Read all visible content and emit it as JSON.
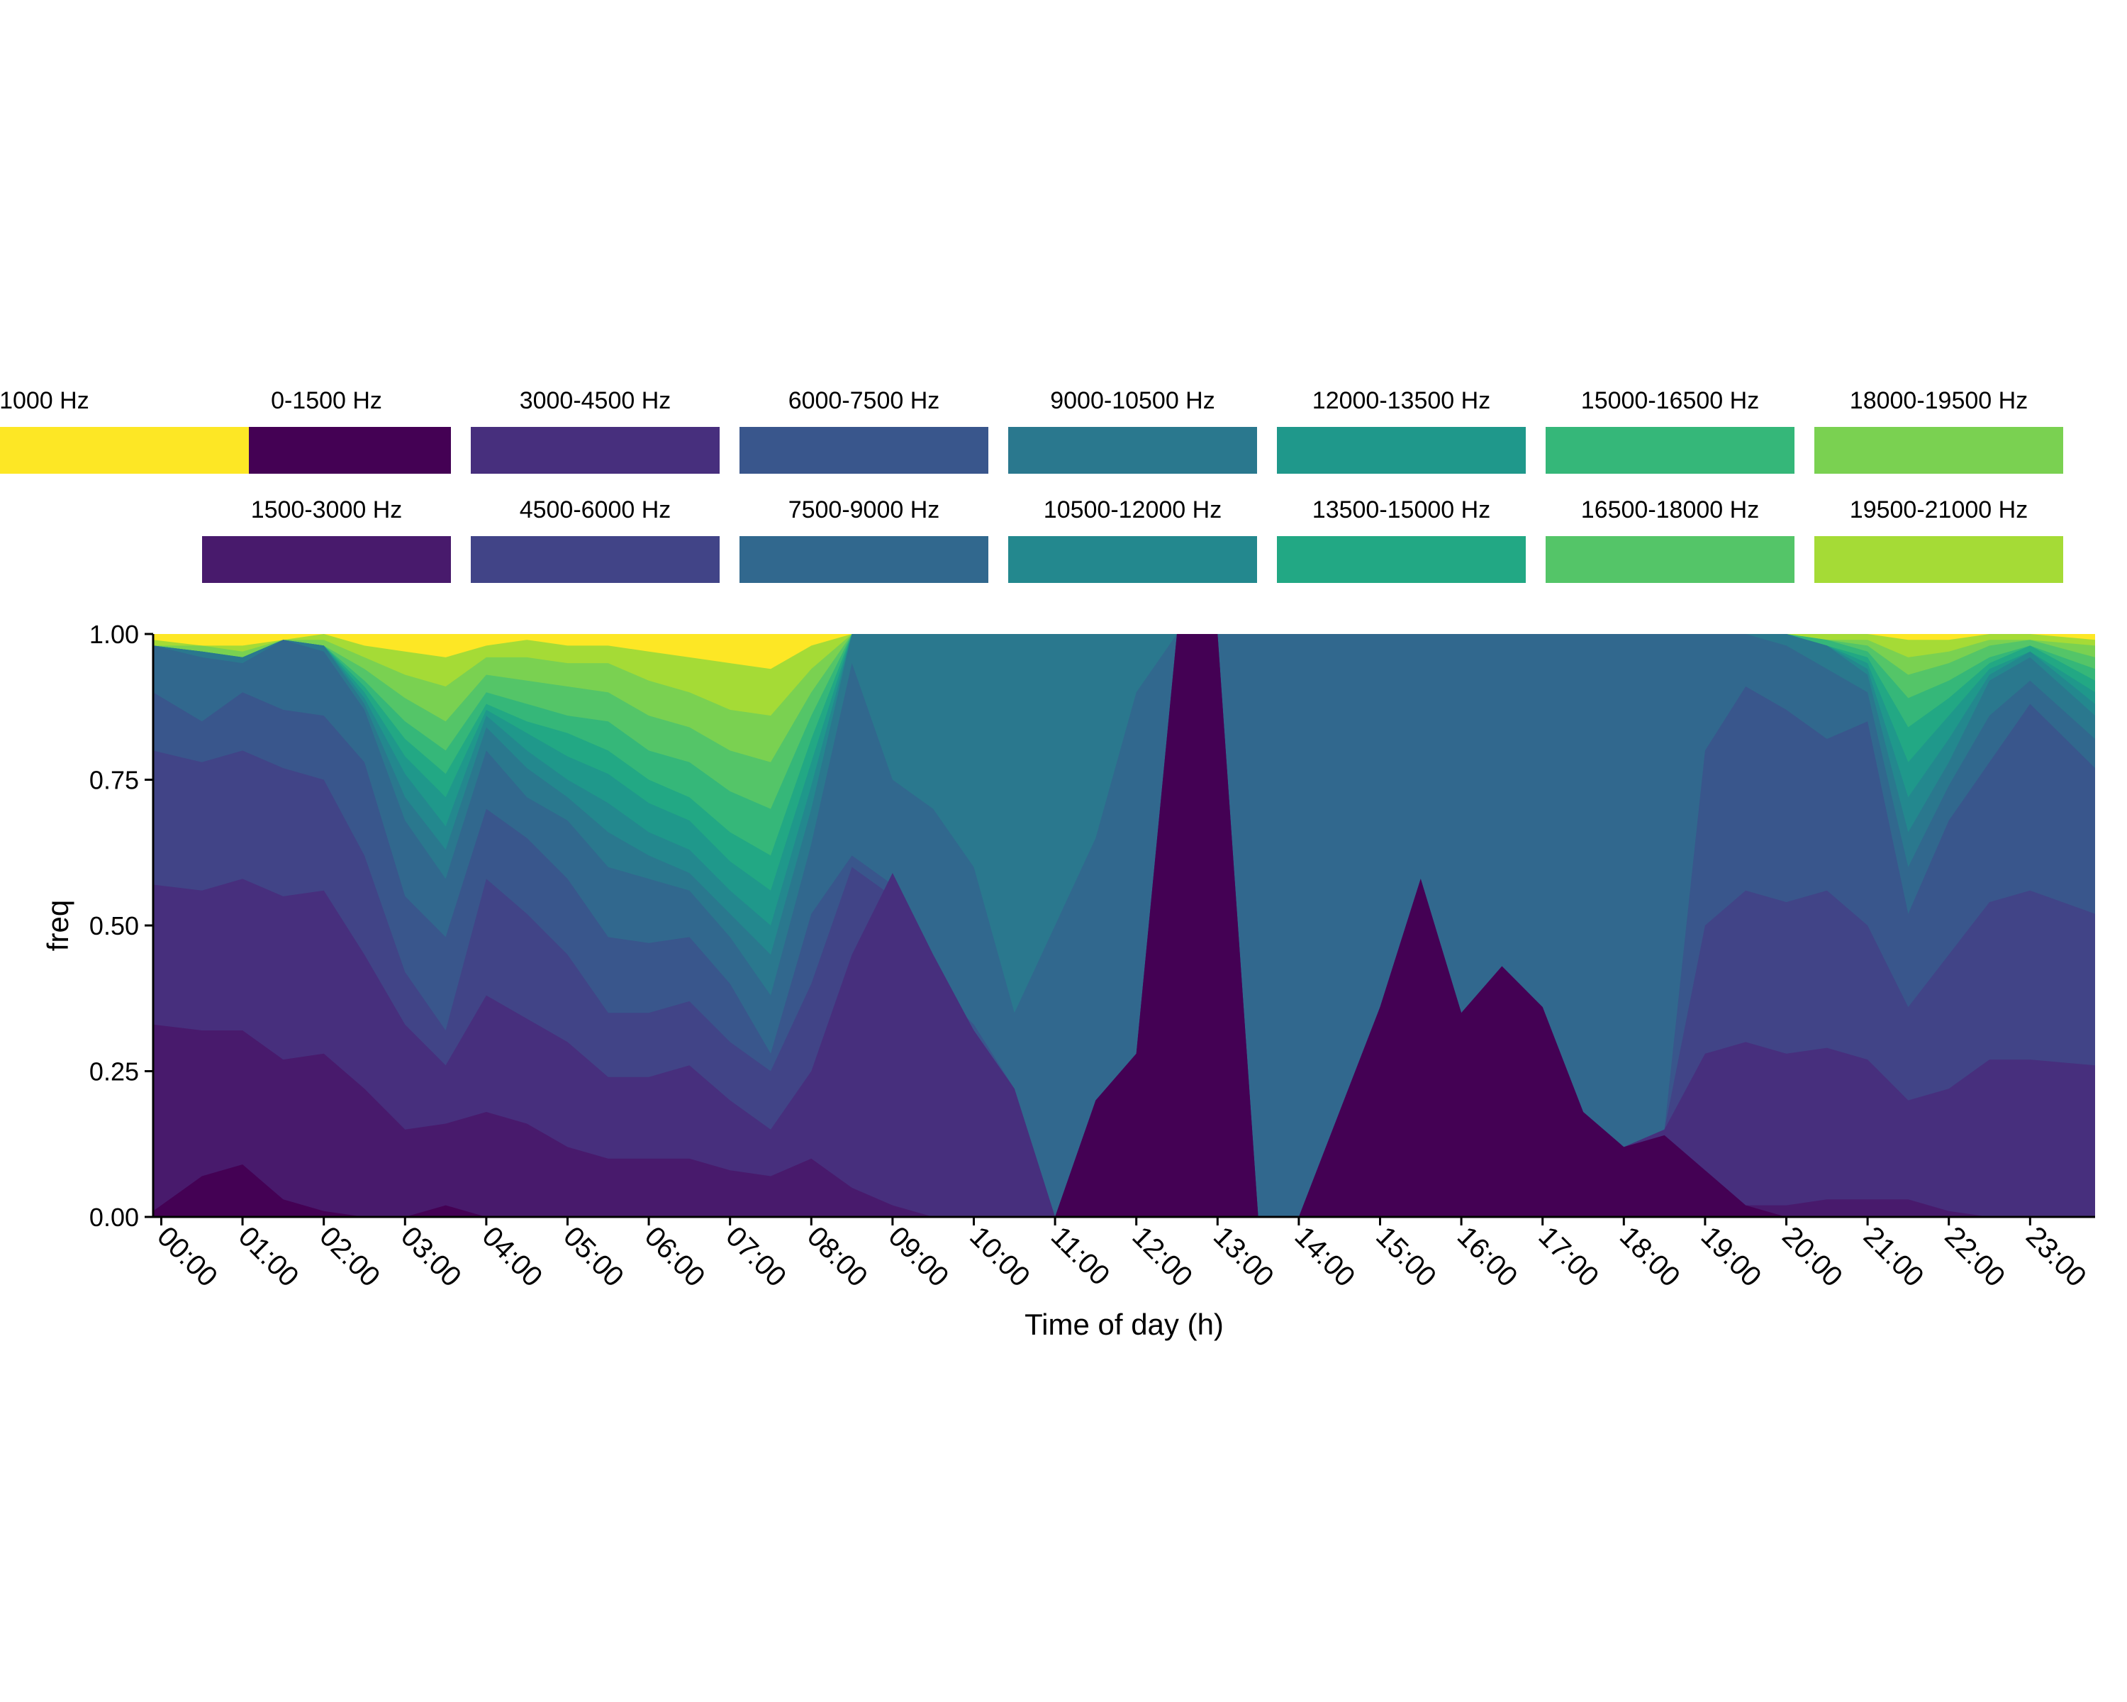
{
  "chart_data": {
    "type": "area",
    "stacked": "fill",
    "xlabel": "Time of day (h)",
    "ylabel": "freq",
    "ylim": [
      0,
      1
    ],
    "y_ticks": [
      "0.00",
      "0.25",
      "0.50",
      "0.75",
      "1.00"
    ],
    "x_ticks": [
      "00:00",
      "01:00",
      "02:00",
      "03:00",
      "04:00",
      "05:00",
      "06:00",
      "07:00",
      "08:00",
      "09:00",
      "10:00",
      "11:00",
      "12:00",
      "13:00",
      "14:00",
      "15:00",
      "16:00",
      "17:00",
      "18:00",
      "19:00",
      "20:00",
      "21:00",
      "22:00",
      "23:00"
    ],
    "x_range_hours": [
      -0.1,
      23.8
    ],
    "grid": false,
    "legend_position": "top",
    "series": [
      {
        "name": "0-1500 Hz",
        "color": "#440154"
      },
      {
        "name": "1500-3000 Hz",
        "color": "#481A6C"
      },
      {
        "name": "3000-4500 Hz",
        "color": "#472F7D"
      },
      {
        "name": "4500-6000 Hz",
        "color": "#414487"
      },
      {
        "name": "6000-7500 Hz",
        "color": "#39568C"
      },
      {
        "name": "7500-9000 Hz",
        "color": "#31688E"
      },
      {
        "name": "9000-10500 Hz",
        "color": "#2A788E"
      },
      {
        "name": "10500-12000 Hz",
        "color": "#23888E"
      },
      {
        "name": "12000-13500 Hz",
        "color": "#1F988B"
      },
      {
        "name": "13500-15000 Hz",
        "color": "#22A884"
      },
      {
        "name": "15000-16500 Hz",
        "color": "#35B779"
      },
      {
        "name": "16500-18000 Hz",
        "color": "#54C568"
      },
      {
        "name": "18000-19500 Hz",
        "color": "#7AD151"
      },
      {
        "name": "19500-21000 Hz",
        "color": "#A5DB36"
      }
    ],
    "x": [
      0,
      0.5,
      1,
      1.5,
      2,
      2.5,
      3,
      3.5,
      4,
      4.5,
      5,
      5.5,
      6,
      6.5,
      7,
      7.5,
      8,
      8.5,
      9,
      9.5,
      10,
      10.5,
      11,
      11.5,
      12,
      12.5,
      13,
      13.5,
      14,
      14.5,
      15,
      15.5,
      16,
      16.5,
      17,
      17.5,
      18,
      18.5,
      19,
      19.5,
      20,
      20.5,
      21,
      21.5,
      22,
      22.5,
      23,
      23.5
    ],
    "boundaries": [
      [
        0.01,
        0.07,
        0.09,
        0.03,
        0.01,
        0.0,
        0.0,
        0.02,
        0.0,
        0.0,
        0.0,
        0.0,
        0.0,
        0.0,
        0.0,
        0.0,
        0.0,
        0.0,
        0.0,
        0.0,
        0.0,
        0.0,
        0.0,
        0.2,
        0.28,
        1.0,
        1.0,
        0.0,
        0.0,
        0.18,
        0.36,
        0.58,
        0.35,
        0.43,
        0.36,
        0.18,
        0.12,
        0.14,
        0.08,
        0.02,
        0.0,
        0.0,
        0.0,
        0.0,
        0.0,
        0.0,
        0.0,
        0.0
      ],
      [
        0.33,
        0.32,
        0.32,
        0.27,
        0.28,
        0.22,
        0.15,
        0.16,
        0.18,
        0.16,
        0.12,
        0.1,
        0.1,
        0.1,
        0.08,
        0.07,
        0.1,
        0.05,
        0.02,
        0.0,
        0.0,
        0.0,
        0.0,
        0.2,
        0.28,
        1.0,
        1.0,
        0.0,
        0.0,
        0.18,
        0.36,
        0.58,
        0.35,
        0.43,
        0.36,
        0.18,
        0.12,
        0.14,
        0.08,
        0.02,
        0.02,
        0.03,
        0.03,
        0.03,
        0.01,
        0.0,
        0.0,
        0.0
      ],
      [
        0.57,
        0.56,
        0.58,
        0.55,
        0.56,
        0.45,
        0.33,
        0.26,
        0.38,
        0.34,
        0.3,
        0.24,
        0.24,
        0.26,
        0.2,
        0.15,
        0.25,
        0.45,
        0.59,
        0.45,
        0.32,
        0.22,
        0.0,
        0.2,
        0.28,
        1.0,
        1.0,
        0.0,
        0.0,
        0.18,
        0.36,
        0.58,
        0.35,
        0.43,
        0.36,
        0.18,
        0.12,
        0.15,
        0.28,
        0.3,
        0.28,
        0.29,
        0.27,
        0.2,
        0.22,
        0.27,
        0.27,
        0.26
      ],
      [
        0.8,
        0.78,
        0.8,
        0.77,
        0.75,
        0.62,
        0.42,
        0.32,
        0.58,
        0.52,
        0.45,
        0.35,
        0.35,
        0.37,
        0.3,
        0.25,
        0.4,
        0.6,
        0.55,
        0.38,
        0.32,
        0.22,
        0.0,
        0.2,
        0.28,
        1.0,
        1.0,
        0.0,
        0.0,
        0.18,
        0.36,
        0.58,
        0.35,
        0.43,
        0.36,
        0.18,
        0.12,
        0.15,
        0.5,
        0.56,
        0.54,
        0.56,
        0.5,
        0.36,
        0.45,
        0.54,
        0.56,
        0.52
      ],
      [
        0.9,
        0.85,
        0.9,
        0.87,
        0.86,
        0.78,
        0.55,
        0.48,
        0.7,
        0.65,
        0.58,
        0.48,
        0.47,
        0.48,
        0.4,
        0.28,
        0.52,
        0.62,
        0.57,
        0.4,
        0.33,
        0.22,
        0.0,
        0.2,
        0.28,
        1.0,
        1.0,
        0.0,
        0.0,
        0.18,
        0.36,
        0.58,
        0.35,
        0.43,
        0.36,
        0.18,
        0.12,
        0.15,
        0.8,
        0.91,
        0.87,
        0.82,
        0.85,
        0.52,
        0.68,
        0.78,
        0.88,
        0.77
      ],
      [
        0.98,
        0.96,
        0.95,
        0.99,
        0.97,
        0.87,
        0.68,
        0.58,
        0.8,
        0.72,
        0.68,
        0.6,
        0.58,
        0.56,
        0.48,
        0.38,
        0.64,
        0.95,
        0.75,
        0.7,
        0.6,
        0.35,
        0.5,
        0.65,
        0.9,
        1.0,
        1.0,
        1.0,
        1.0,
        1.0,
        1.0,
        1.0,
        1.0,
        1.0,
        1.0,
        1.0,
        1.0,
        1.0,
        1.0,
        1.0,
        0.98,
        0.94,
        0.9,
        0.6,
        0.74,
        0.86,
        0.92,
        0.82
      ],
      [
        0.98,
        0.97,
        0.96,
        0.99,
        0.98,
        0.88,
        0.72,
        0.63,
        0.84,
        0.77,
        0.72,
        0.66,
        0.62,
        0.59,
        0.52,
        0.45,
        0.7,
        1.0,
        1.0,
        1.0,
        1.0,
        1.0,
        1.0,
        1.0,
        1.0,
        1.0,
        1.0,
        1.0,
        1.0,
        1.0,
        1.0,
        1.0,
        1.0,
        1.0,
        1.0,
        1.0,
        1.0,
        1.0,
        1.0,
        1.0,
        1.0,
        0.98,
        0.93,
        0.66,
        0.78,
        0.92,
        0.96,
        0.86
      ],
      [
        0.98,
        0.97,
        0.96,
        0.99,
        0.98,
        0.89,
        0.76,
        0.67,
        0.86,
        0.8,
        0.75,
        0.71,
        0.66,
        0.63,
        0.56,
        0.5,
        0.74,
        1.0,
        1.0,
        1.0,
        1.0,
        1.0,
        1.0,
        1.0,
        1.0,
        1.0,
        1.0,
        1.0,
        1.0,
        1.0,
        1.0,
        1.0,
        1.0,
        1.0,
        1.0,
        1.0,
        1.0,
        1.0,
        1.0,
        1.0,
        1.0,
        0.98,
        0.94,
        0.72,
        0.82,
        0.93,
        0.97,
        0.88
      ],
      [
        0.98,
        0.97,
        0.96,
        0.99,
        0.98,
        0.9,
        0.79,
        0.72,
        0.87,
        0.83,
        0.79,
        0.76,
        0.71,
        0.68,
        0.61,
        0.56,
        0.78,
        1.0,
        1.0,
        1.0,
        1.0,
        1.0,
        1.0,
        1.0,
        1.0,
        1.0,
        1.0,
        1.0,
        1.0,
        1.0,
        1.0,
        1.0,
        1.0,
        1.0,
        1.0,
        1.0,
        1.0,
        1.0,
        1.0,
        1.0,
        1.0,
        0.98,
        0.95,
        0.78,
        0.86,
        0.94,
        0.97,
        0.9
      ],
      [
        0.98,
        0.97,
        0.96,
        0.99,
        0.98,
        0.91,
        0.82,
        0.76,
        0.88,
        0.85,
        0.83,
        0.8,
        0.75,
        0.72,
        0.66,
        0.62,
        0.82,
        1.0,
        1.0,
        1.0,
        1.0,
        1.0,
        1.0,
        1.0,
        1.0,
        1.0,
        1.0,
        1.0,
        1.0,
        1.0,
        1.0,
        1.0,
        1.0,
        1.0,
        1.0,
        1.0,
        1.0,
        1.0,
        1.0,
        1.0,
        1.0,
        0.98,
        0.96,
        0.84,
        0.89,
        0.95,
        0.98,
        0.92
      ],
      [
        0.98,
        0.97,
        0.96,
        0.99,
        0.98,
        0.92,
        0.85,
        0.8,
        0.9,
        0.88,
        0.86,
        0.85,
        0.8,
        0.78,
        0.73,
        0.7,
        0.86,
        1.0,
        1.0,
        1.0,
        1.0,
        1.0,
        1.0,
        1.0,
        1.0,
        1.0,
        1.0,
        1.0,
        1.0,
        1.0,
        1.0,
        1.0,
        1.0,
        1.0,
        1.0,
        1.0,
        1.0,
        1.0,
        1.0,
        1.0,
        1.0,
        0.99,
        0.97,
        0.89,
        0.92,
        0.96,
        0.98,
        0.94
      ],
      [
        0.98,
        0.97,
        0.96,
        0.99,
        0.98,
        0.94,
        0.89,
        0.85,
        0.93,
        0.92,
        0.91,
        0.9,
        0.86,
        0.84,
        0.8,
        0.78,
        0.9,
        1.0,
        1.0,
        1.0,
        1.0,
        1.0,
        1.0,
        1.0,
        1.0,
        1.0,
        1.0,
        1.0,
        1.0,
        1.0,
        1.0,
        1.0,
        1.0,
        1.0,
        1.0,
        1.0,
        1.0,
        1.0,
        1.0,
        1.0,
        1.0,
        0.99,
        0.98,
        0.93,
        0.95,
        0.98,
        0.99,
        0.96
      ],
      [
        0.98,
        0.98,
        0.97,
        0.99,
        0.99,
        0.96,
        0.93,
        0.91,
        0.96,
        0.96,
        0.95,
        0.95,
        0.92,
        0.9,
        0.87,
        0.86,
        0.94,
        1.0,
        1.0,
        1.0,
        1.0,
        1.0,
        1.0,
        1.0,
        1.0,
        1.0,
        1.0,
        1.0,
        1.0,
        1.0,
        1.0,
        1.0,
        1.0,
        1.0,
        1.0,
        1.0,
        1.0,
        1.0,
        1.0,
        1.0,
        1.0,
        0.99,
        0.99,
        0.96,
        0.97,
        0.99,
        0.99,
        0.98
      ],
      [
        0.99,
        0.98,
        0.98,
        0.99,
        1.0,
        0.98,
        0.97,
        0.96,
        0.98,
        0.99,
        0.98,
        0.98,
        0.97,
        0.96,
        0.95,
        0.94,
        0.98,
        1.0,
        1.0,
        1.0,
        1.0,
        1.0,
        1.0,
        1.0,
        1.0,
        1.0,
        1.0,
        1.0,
        1.0,
        1.0,
        1.0,
        1.0,
        1.0,
        1.0,
        1.0,
        1.0,
        1.0,
        1.0,
        1.0,
        1.0,
        1.0,
        1.0,
        1.0,
        0.99,
        0.99,
        1.0,
        1.0,
        0.99
      ]
    ],
    "top_color": "#FDE725"
  }
}
